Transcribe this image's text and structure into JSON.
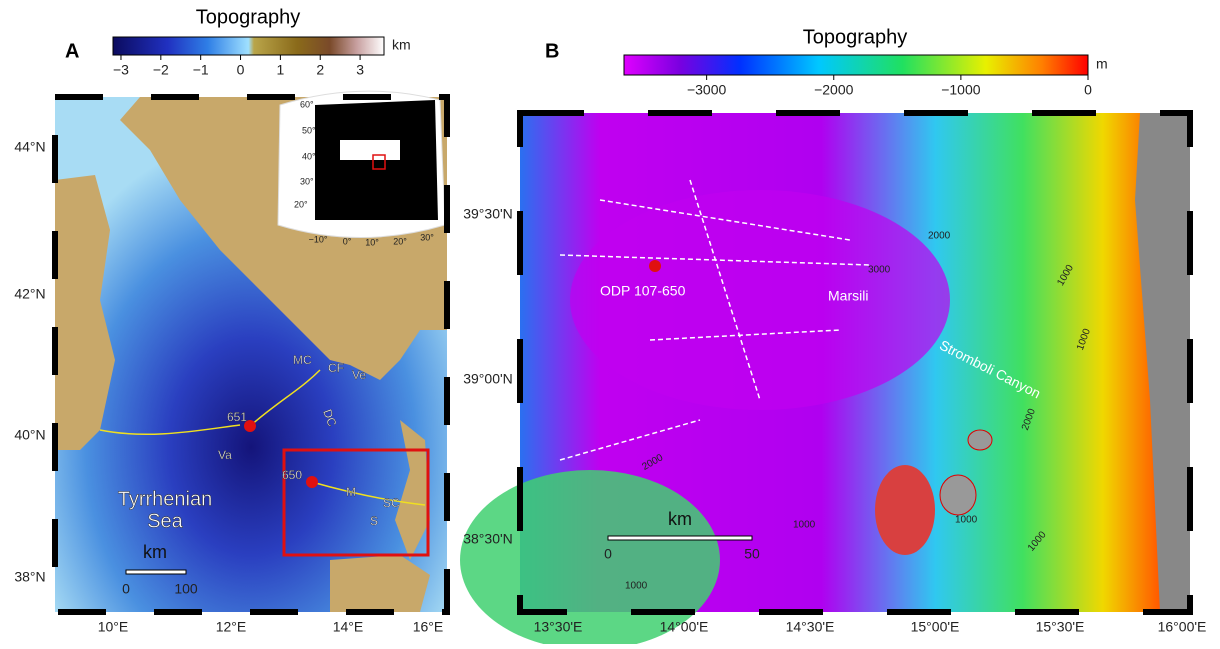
{
  "panel_a": {
    "letter": "A",
    "colorbar": {
      "title": "Topography",
      "unit": "km",
      "range": [
        -3.2,
        3.6
      ],
      "ticks": [
        {
          "value": -3,
          "label": "−3"
        },
        {
          "value": -2,
          "label": "−2"
        },
        {
          "value": -1,
          "label": "−1"
        },
        0,
        1,
        2,
        3
      ]
    },
    "lat_labels": [
      "44°N",
      "42°N",
      "40°N",
      "38°N"
    ],
    "lon_labels": [
      "10°E",
      "12°E",
      "14°E",
      "16°E"
    ],
    "inset": {
      "lat_labels": [
        "60°",
        "50°",
        "40°",
        "30°",
        "20°"
      ],
      "lon_labels": [
        "−10°",
        "0°",
        "10°",
        "20°",
        "30°"
      ]
    },
    "labels": {
      "mc": "MC",
      "cf": "CF",
      "ve": "Ve",
      "dc": "DC",
      "site_651": "651",
      "site_650": "650",
      "va": "Va",
      "m": "M",
      "sc": "SC",
      "s": "S",
      "sea": [
        "Tyrrhenian",
        "Sea"
      ]
    },
    "scale_bar": {
      "unit": "km",
      "labels": [
        "0",
        "100"
      ]
    }
  },
  "panel_b": {
    "letter": "B",
    "colorbar": {
      "title": "Topography",
      "unit": "m",
      "range": [
        -3650,
        0
      ],
      "ticks": [
        {
          "value": -3000,
          "label": "−3000"
        },
        {
          "value": -2000,
          "label": "−2000"
        },
        {
          "value": -1000,
          "label": "−1000"
        },
        0
      ]
    },
    "lat_labels": [
      "39°30'N",
      "39°00'N",
      "38°30'N"
    ],
    "lon_labels": [
      "13°30'E",
      "14°00'E",
      "14°30'E",
      "15°00'E",
      "15°30'E",
      "16°00'E"
    ],
    "labels": {
      "site": "ODP 107-650",
      "marsili": "Marsili",
      "canyon": "Stromboli Canyon"
    },
    "contour_labels": [
      "2000",
      "3000",
      "1000",
      "1000",
      "2000",
      "2000",
      "1000",
      "1000",
      "1000",
      "1000"
    ],
    "scale_bar": {
      "unit": "km",
      "labels": [
        "0",
        "50"
      ]
    }
  }
}
